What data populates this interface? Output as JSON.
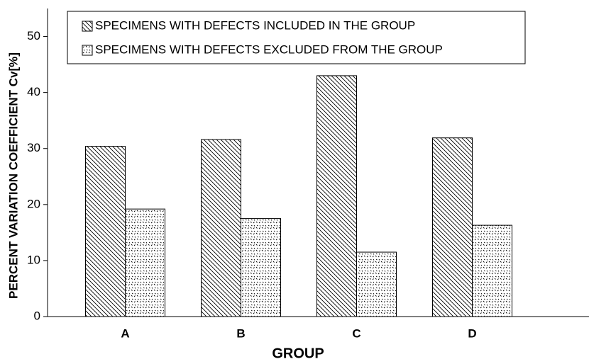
{
  "chart_data": {
    "type": "bar",
    "x_label": "GROUP",
    "y_label": "PERCENT VARIATION COEFFICIENT Cv[%]",
    "categories": [
      "A",
      "B",
      "C",
      "D"
    ],
    "series": [
      {
        "name": "SPECIMENS WITH DEFECTS INCLUDED IN THE GROUP",
        "color": "#000000",
        "pattern": "hatch",
        "values": [
          30.4,
          31.6,
          43.0,
          31.9
        ]
      },
      {
        "name": "SPECIMENS WITH DEFECTS EXCLUDED FROM THE GROUP",
        "color": "#000000",
        "pattern": "dots",
        "values": [
          19.2,
          17.5,
          11.5,
          16.3
        ]
      }
    ],
    "ylim": [
      0,
      55
    ],
    "yticks": [
      0,
      10,
      20,
      30,
      40,
      50
    ],
    "grid": false,
    "legend": "top-left"
  }
}
